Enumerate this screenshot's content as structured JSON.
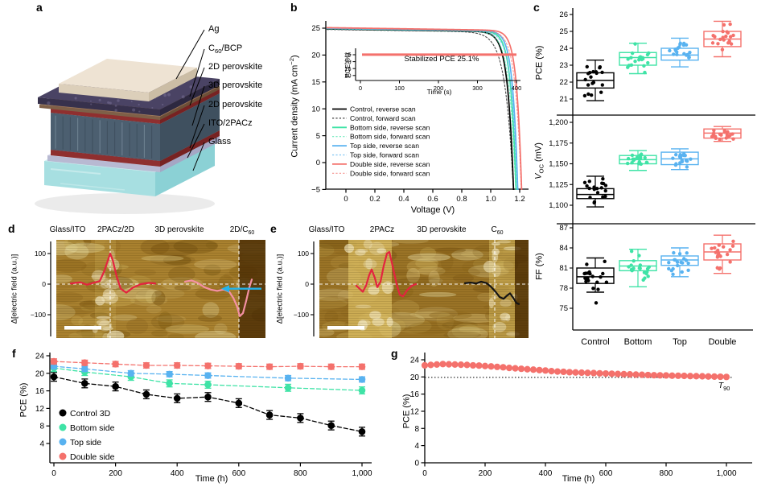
{
  "colors": {
    "control": "#000000",
    "bottom_side": "#3fe3a6",
    "top_side": "#58b2f0",
    "double_side": "#f4716c",
    "profile_red": "#e3243f",
    "profile_pink": "#f490a3",
    "profile_black": "#141414",
    "arrow_cyan": "#23b3ea",
    "kpfm_base_d": "#a9812f",
    "kpfm_base_e": "#9a7326",
    "kpfm_dark": "#4a2c04",
    "kpfm_light": "#e8dca2"
  },
  "chart_data": {
    "panel_a": {
      "label": "a",
      "type": "device-schematic",
      "layer_labels": [
        {
          "pre": "Ag"
        },
        {
          "pre": "C",
          "sub": "60",
          "post": "/BCP"
        },
        {
          "pre": "2D perovskite"
        },
        {
          "pre": "3D perovskite"
        },
        {
          "pre": "2D perovskite"
        },
        {
          "pre": "ITO/2PACz"
        },
        {
          "pre": "Glass"
        }
      ],
      "layer_colors": {
        "ag": {
          "top": "#eee3d3",
          "front": "#dccfba",
          "side": "#cbbda5"
        },
        "c60bcp": {
          "top": "#4a4364",
          "front": "#37314c",
          "side": "#2d2840"
        },
        "bcp_under": {
          "top": "#9a7a5e",
          "front": "#7e6048",
          "side": "#6c5038"
        },
        "perov2d": {
          "top": "#a63d3d",
          "front": "#8f2f2f",
          "side": "#772222"
        },
        "perov3d": {
          "top": "#5f7384",
          "front": "#4c5f70",
          "side": "#3f505f"
        },
        "ito": {
          "top": "#d9d9ec",
          "front": "#b8b9d2",
          "side": "#a5a6c4"
        },
        "glass": {
          "top": "#cdeff0",
          "front": "#a7dfe1",
          "side": "#8bd1d5"
        }
      }
    },
    "panel_b": {
      "label": "b",
      "type": "line",
      "xlabel": "Voltage (V)",
      "ylabel_pre": "Current density (mA cm",
      "ylabel_sup": "−2",
      "ylabel_post": ")",
      "yticks": [
        "25",
        "20",
        "15",
        "10",
        "5",
        "0",
        "−5"
      ],
      "ytick_vals": [
        25,
        20,
        15,
        10,
        5,
        0,
        -5
      ],
      "xticks": [
        "0",
        "0.2",
        "0.4",
        "0.6",
        "0.8",
        "1.0",
        "1.2"
      ],
      "xtick_vals": [
        0,
        0.2,
        0.4,
        0.6,
        0.8,
        1.0,
        1.2
      ],
      "xrange": [
        -0.13,
        1.23
      ],
      "yrange": [
        -5,
        26
      ],
      "curves": [
        {
          "label": "Control, reverse scan",
          "color_key": "control",
          "dash": false,
          "jsc": 24.8,
          "voc": 1.15,
          "n": 0.04
        },
        {
          "label": "Control, forward scan",
          "color_key": "control",
          "dash": true,
          "jsc": 24.7,
          "voc": 1.146,
          "n": 0.055
        },
        {
          "label": "Bottom side, reverse scan",
          "color_key": "bottom_side",
          "dash": false,
          "jsc": 24.9,
          "voc": 1.168,
          "n": 0.036
        },
        {
          "label": "Bottom side, forward scan",
          "color_key": "bottom_side",
          "dash": true,
          "jsc": 24.8,
          "voc": 1.164,
          "n": 0.044
        },
        {
          "label": "Top side, reverse scan",
          "color_key": "top_side",
          "dash": false,
          "jsc": 24.95,
          "voc": 1.18,
          "n": 0.035
        },
        {
          "label": "Top side, forward scan",
          "color_key": "top_side",
          "dash": true,
          "jsc": 24.85,
          "voc": 1.176,
          "n": 0.042
        },
        {
          "label": "Double side, reverse scan",
          "color_key": "double_side",
          "dash": false,
          "jsc": 25.05,
          "voc": 1.207,
          "n": 0.034
        },
        {
          "label": "Double side, forward scan",
          "color_key": "double_side",
          "dash": true,
          "jsc": 24.95,
          "voc": 1.203,
          "n": 0.04
        }
      ],
      "inset": {
        "ylabel": "PCE (%)",
        "xlabel": "Time (s)",
        "annotation": "Stabilized PCE 25.1%",
        "yticks": [
          "25",
          "20",
          "15",
          "10"
        ],
        "ytick_vals": [
          25,
          20,
          15,
          10
        ],
        "xticks": [
          "0",
          "100",
          "200",
          "300",
          "400"
        ],
        "xtick_vals": [
          0,
          100,
          200,
          300,
          400
        ],
        "line_value": 25.1,
        "line_x_end": 400
      }
    },
    "panel_c": {
      "label": "c",
      "type": "boxplot",
      "ylabel1": "PCE (%)",
      "ylabel2_pre": "V",
      "ylabel2_sub": "OC",
      "ylabel2_post": " (mV)",
      "ylabel3": "FF (%)",
      "groups": [
        "Control",
        "Bottom",
        "Top",
        "Double"
      ],
      "group_keys": [
        "control",
        "bottom_side",
        "top_side",
        "double_side"
      ],
      "subpanels": [
        {
          "name": "PCE (%)",
          "yticks": [
            "26",
            "25",
            "24",
            "23",
            "22",
            "21"
          ],
          "ytick_vals": [
            26,
            25,
            24,
            23,
            22,
            21
          ],
          "boxes": [
            {
              "lo": 20.9,
              "q1": 21.65,
              "med": 22.1,
              "q3": 22.55,
              "hi": 23.3
            },
            {
              "lo": 22.5,
              "q1": 23.0,
              "med": 23.45,
              "q3": 23.75,
              "hi": 24.3
            },
            {
              "lo": 22.9,
              "q1": 23.3,
              "med": 23.6,
              "q3": 24.0,
              "hi": 24.6
            },
            {
              "lo": 23.5,
              "q1": 24.1,
              "med": 24.55,
              "q3": 25.0,
              "hi": 25.6
            }
          ]
        },
        {
          "name": "VOC (mV)",
          "yticks": [
            "1,200",
            "1,175",
            "1,150",
            "1,125",
            "1,100"
          ],
          "ytick_vals": [
            1200,
            1175,
            1150,
            1125,
            1100
          ],
          "boxes": [
            {
              "lo": 1098,
              "q1": 1108,
              "med": 1113,
              "q3": 1120,
              "hi": 1135
            },
            {
              "lo": 1142,
              "q1": 1150,
              "med": 1155,
              "q3": 1160,
              "hi": 1166
            },
            {
              "lo": 1143,
              "q1": 1149,
              "med": 1156,
              "q3": 1164,
              "hi": 1168
            },
            {
              "lo": 1177,
              "q1": 1181,
              "med": 1187,
              "q3": 1192,
              "hi": 1195
            }
          ]
        },
        {
          "name": "FF (%)",
          "yticks": [
            "87",
            "84",
            "81",
            "78",
            "75"
          ],
          "ytick_vals": [
            87,
            84,
            81,
            78,
            75
          ],
          "boxes": [
            {
              "lo": 77.4,
              "q1": 78.7,
              "med": 79.7,
              "q3": 81.0,
              "hi": 82.5,
              "outliers": [
                75.8
              ]
            },
            {
              "lo": 78.2,
              "q1": 80.6,
              "med": 81.3,
              "q3": 82.1,
              "hi": 83.8
            },
            {
              "lo": 79.7,
              "q1": 81.4,
              "med": 82.2,
              "q3": 82.8,
              "hi": 84.0
            },
            {
              "lo": 80.2,
              "q1": 82.2,
              "med": 83.4,
              "q3": 84.6,
              "hi": 85.9
            }
          ]
        }
      ]
    },
    "panel_d": {
      "label": "d",
      "type": "kpfm-image",
      "ylabel": "Δ[electric field (a.u.)]",
      "yticks": [
        "100",
        "0",
        "−100"
      ],
      "ytick_vals": [
        100,
        0,
        -100
      ],
      "region_labels": [
        {
          "text": "Glass/ITO",
          "cx": 84
        },
        {
          "text": "2PACz/2D",
          "cx": 144
        },
        {
          "text": "3D perovskite",
          "cx": 223
        },
        {
          "text": "2D/C",
          "sub": "60",
          "cx": 301
        }
      ],
      "boundaries_x": [
        67,
        227
      ],
      "profiles": [
        {
          "color_key": "profile_red",
          "points": [
            [
              18,
              2
            ],
            [
              30,
              6
            ],
            [
              38,
              -2
            ],
            [
              46,
              4
            ],
            [
              54,
              10
            ],
            [
              60,
              45
            ],
            [
              65,
              85
            ],
            [
              67,
              100
            ],
            [
              70,
              80
            ],
            [
              75,
              25
            ],
            [
              80,
              -15
            ],
            [
              87,
              -28
            ],
            [
              95,
              -12
            ],
            [
              105,
              0
            ],
            [
              115,
              4
            ],
            [
              123,
              2
            ]
          ]
        },
        {
          "color_key": "profile_pink",
          "points": [
            [
              160,
              8
            ],
            [
              168,
              12
            ],
            [
              176,
              4
            ],
            [
              184,
              -10
            ],
            [
              192,
              -18
            ],
            [
              200,
              -22
            ],
            [
              208,
              -18
            ],
            [
              215,
              -25
            ],
            [
              220,
              -45
            ],
            [
              225,
              -75
            ],
            [
              228,
              -105
            ],
            [
              232,
              -95
            ],
            [
              236,
              -55
            ],
            [
              240,
              -10
            ],
            [
              243,
              15
            ]
          ]
        }
      ],
      "arrow": {
        "x1": 255,
        "x2": 205,
        "v": -15
      }
    },
    "panel_e": {
      "label": "e",
      "type": "kpfm-image",
      "ylabel": "Δ[electric field (a.u.)]",
      "yticks": [
        "100",
        "0",
        "−100"
      ],
      "ytick_vals": [
        100,
        0,
        -100
      ],
      "region_labels": [
        {
          "text": "Glass/ITO",
          "cx": 76
        },
        {
          "text": "2PACz",
          "cx": 145
        },
        {
          "text": "3D perovskite",
          "cx": 219
        },
        {
          "text": "C",
          "sub": "60",
          "cx": 288
        }
      ],
      "boundaries_x": [
        218
      ],
      "profiles": [
        {
          "color_key": "profile_red",
          "points": [
            [
              46,
              -5
            ],
            [
              50,
              -15
            ],
            [
              54,
              -25
            ],
            [
              58,
              -5
            ],
            [
              62,
              30
            ],
            [
              65,
              48
            ],
            [
              69,
              20
            ],
            [
              72,
              -10
            ],
            [
              76,
              8
            ],
            [
              80,
              60
            ],
            [
              84,
              100
            ],
            [
              87,
              105
            ],
            [
              91,
              60
            ],
            [
              96,
              0
            ],
            [
              100,
              -35
            ],
            [
              104,
              -40
            ],
            [
              109,
              -20
            ],
            [
              115,
              -5
            ],
            [
              120,
              0
            ]
          ]
        },
        {
          "color_key": "profile_black",
          "points": [
            [
              181,
              3
            ],
            [
              188,
              5
            ],
            [
              195,
              2
            ],
            [
              201,
              8
            ],
            [
              208,
              3
            ],
            [
              213,
              -8
            ],
            [
              219,
              -25
            ],
            [
              224,
              -42
            ],
            [
              229,
              -48
            ],
            [
              233,
              -38
            ],
            [
              237,
              -30
            ],
            [
              241,
              -45
            ],
            [
              245,
              -62
            ],
            [
              248,
              -65
            ]
          ]
        }
      ]
    },
    "panel_f": {
      "label": "f",
      "type": "line",
      "xlabel": "Time (h)",
      "ylabel": "PCE (%)",
      "yticks": [
        "24",
        "20",
        "16",
        "12",
        "8",
        "4"
      ],
      "ytick_vals": [
        24,
        20,
        16,
        12,
        8,
        4
      ],
      "xticks": [
        "0",
        "200",
        "400",
        "600",
        "800",
        "1,000"
      ],
      "xtick_vals": [
        0,
        200,
        400,
        600,
        800,
        1000
      ],
      "series": [
        {
          "name": "Control 3D",
          "color_key": "control",
          "x": [
            0,
            100,
            200,
            300,
            400,
            500,
            600,
            700,
            800,
            900,
            1000
          ],
          "y": [
            19.2,
            17.7,
            17.0,
            15.2,
            14.3,
            14.6,
            13.2,
            10.5,
            9.8,
            8.1,
            6.7
          ],
          "err": 1.0
        },
        {
          "name": "Bottom side",
          "color_key": "bottom_side",
          "x": [
            0,
            100,
            250,
            375,
            500,
            760,
            1000
          ],
          "y": [
            21.2,
            20.3,
            19.2,
            17.7,
            17.4,
            16.7,
            16.1
          ],
          "err": 0.8
        },
        {
          "name": "Top side",
          "color_key": "top_side",
          "x": [
            0,
            100,
            250,
            375,
            500,
            760,
            1000
          ],
          "y": [
            21.6,
            21.0,
            20.0,
            19.8,
            19.5,
            18.9,
            18.6
          ],
          "err": 0.6
        },
        {
          "name": "Double side",
          "color_key": "double_side",
          "x": [
            0,
            100,
            200,
            300,
            400,
            500,
            600,
            700,
            800,
            900,
            1000
          ],
          "y": [
            22.7,
            22.4,
            22.1,
            21.8,
            21.8,
            21.7,
            21.6,
            21.5,
            21.6,
            21.5,
            21.5
          ],
          "err": 0.6
        }
      ]
    },
    "panel_g": {
      "label": "g",
      "type": "line",
      "xlabel": "Time (h)",
      "ylabel": "PCE (%)",
      "t90_pre": "T",
      "t90_sub": "90",
      "threshold": 19.9,
      "yticks": [
        "24",
        "20",
        "16",
        "12",
        "8",
        "4",
        "0"
      ],
      "ytick_vals": [
        24,
        20,
        16,
        12,
        8,
        4,
        0
      ],
      "xticks": [
        "0",
        "200",
        "400",
        "600",
        "800",
        "1,000"
      ],
      "xtick_vals": [
        0,
        200,
        400,
        600,
        800,
        1000
      ],
      "series": {
        "color_key": "double_side",
        "t0": 0,
        "dt": 20,
        "values": [
          22.7,
          22.8,
          22.9,
          23.0,
          22.95,
          22.9,
          22.85,
          22.8,
          22.7,
          22.65,
          22.55,
          22.45,
          22.35,
          22.25,
          22.1,
          22.0,
          21.9,
          21.8,
          21.7,
          21.6,
          21.5,
          21.35,
          21.25,
          21.2,
          21.1,
          21.05,
          21.0,
          20.95,
          20.9,
          20.85,
          20.8,
          20.75,
          20.7,
          20.65,
          20.6,
          20.55,
          20.5,
          20.45,
          20.4,
          20.38,
          20.35,
          20.3,
          20.28,
          20.25,
          20.2,
          20.18,
          20.15,
          20.1,
          20.08,
          20.05,
          20.0
        ]
      }
    }
  }
}
